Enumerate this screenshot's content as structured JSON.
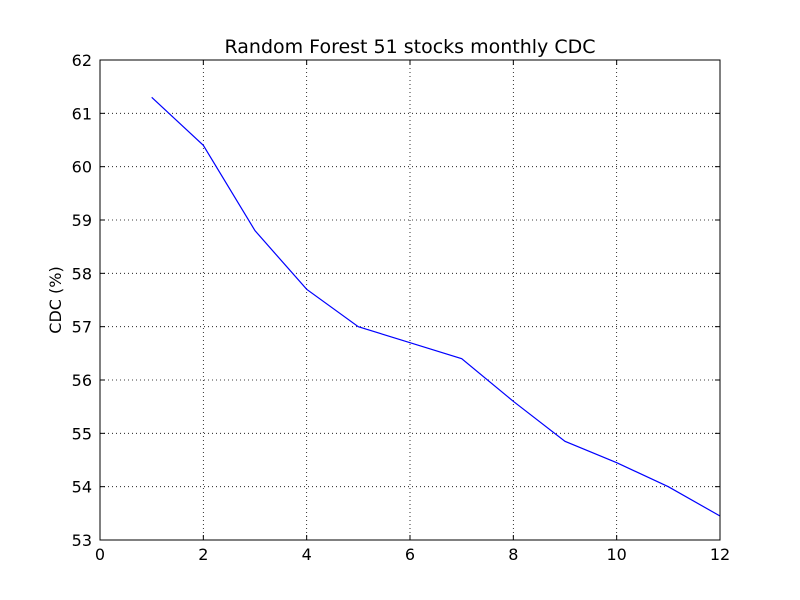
{
  "chart_data": {
    "type": "line",
    "title": "Random Forest 51 stocks monthly CDC",
    "xlabel": "",
    "ylabel": "CDC (%)",
    "xlim": [
      0,
      12
    ],
    "ylim": [
      53,
      62
    ],
    "xticks": [
      0,
      2,
      4,
      6,
      8,
      10,
      12
    ],
    "yticks": [
      53,
      54,
      55,
      56,
      57,
      58,
      59,
      60,
      61,
      62
    ],
    "grid": true,
    "series": [
      {
        "color": "#0000ff",
        "x": [
          1,
          2,
          3,
          4,
          5,
          6,
          7,
          8,
          9,
          10,
          11,
          12
        ],
        "y": [
          61.3,
          60.4,
          58.8,
          57.7,
          57.0,
          56.7,
          56.4,
          55.6,
          54.85,
          54.45,
          54.0,
          53.45
        ]
      }
    ]
  }
}
